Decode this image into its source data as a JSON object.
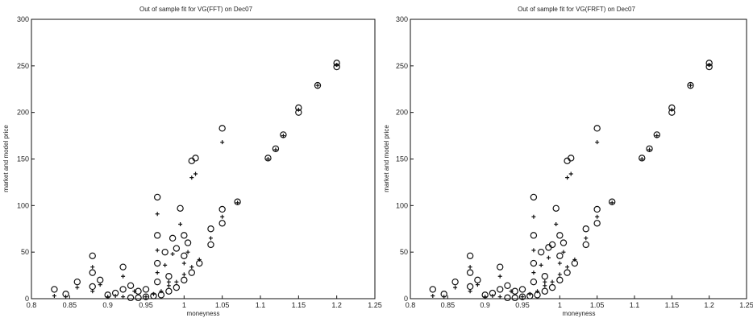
{
  "chart_data": [
    {
      "type": "scatter",
      "title": "Out of sample fit for VG(FFT) on Dec07",
      "xlabel": "moneyness",
      "ylabel": "market and model price",
      "xlim": [
        0.8,
        1.25
      ],
      "ylim": [
        0,
        300
      ],
      "xticks": [
        "0.8",
        "0.85",
        "0.9",
        "0.95",
        "1",
        "1.05",
        "1.1",
        "1.15",
        "1.2",
        "1.25"
      ],
      "yticks": [
        "0",
        "50",
        "100",
        "150",
        "200",
        "250",
        "300"
      ],
      "grid": false,
      "series": [
        {
          "marker": "circle",
          "points": [
            [
              0.83,
              10
            ],
            [
              0.845,
              5
            ],
            [
              0.86,
              18
            ],
            [
              0.88,
              46
            ],
            [
              0.88,
              13
            ],
            [
              0.88,
              28
            ],
            [
              0.89,
              20
            ],
            [
              0.9,
              4
            ],
            [
              0.91,
              6
            ],
            [
              0.92,
              34
            ],
            [
              0.92,
              10
            ],
            [
              0.93,
              14
            ],
            [
              0.94,
              8
            ],
            [
              0.95,
              10
            ],
            [
              0.965,
              109
            ],
            [
              0.965,
              68
            ],
            [
              0.965,
              38
            ],
            [
              0.965,
              18
            ],
            [
              0.975,
              50
            ],
            [
              0.98,
              24
            ],
            [
              0.985,
              65
            ],
            [
              0.99,
              54
            ],
            [
              0.995,
              97
            ],
            [
              1.0,
              46
            ],
            [
              1.0,
              68
            ],
            [
              1.005,
              60
            ],
            [
              1.01,
              148
            ],
            [
              1.015,
              151
            ],
            [
              1.05,
              183
            ],
            [
              1.05,
              96
            ],
            [
              1.05,
              81
            ],
            [
              1.035,
              58
            ],
            [
              1.035,
              75
            ],
            [
              1.07,
              104
            ],
            [
              1.11,
              151
            ],
            [
              1.12,
              161
            ],
            [
              1.13,
              176
            ],
            [
              1.15,
              205
            ],
            [
              1.15,
              200
            ],
            [
              1.175,
              229
            ],
            [
              1.2,
              253
            ],
            [
              1.2,
              249
            ],
            [
              0.93,
              1
            ],
            [
              0.94,
              1
            ],
            [
              0.95,
              2
            ],
            [
              0.96,
              3
            ],
            [
              0.97,
              4
            ],
            [
              0.98,
              8
            ],
            [
              0.99,
              12
            ],
            [
              1.0,
              20
            ],
            [
              1.01,
              28
            ],
            [
              1.02,
              38
            ]
          ]
        },
        {
          "marker": "plus",
          "points": [
            [
              0.83,
              3
            ],
            [
              0.845,
              2
            ],
            [
              0.86,
              12
            ],
            [
              0.88,
              34
            ],
            [
              0.88,
              8
            ],
            [
              0.89,
              15
            ],
            [
              0.92,
              24
            ],
            [
              0.935,
              8
            ],
            [
              0.965,
              91
            ],
            [
              0.965,
              52
            ],
            [
              0.965,
              28
            ],
            [
              0.975,
              36
            ],
            [
              0.98,
              18
            ],
            [
              0.985,
              48
            ],
            [
              0.995,
              80
            ],
            [
              1.0,
              38
            ],
            [
              1.005,
              50
            ],
            [
              1.01,
              130
            ],
            [
              1.015,
              134
            ],
            [
              1.05,
              168
            ],
            [
              1.05,
              88
            ],
            [
              1.035,
              65
            ],
            [
              1.07,
              103
            ],
            [
              1.11,
              150
            ],
            [
              1.12,
              160
            ],
            [
              1.13,
              175
            ],
            [
              1.15,
              203
            ],
            [
              1.175,
              229
            ],
            [
              1.2,
              251
            ],
            [
              0.9,
              2
            ],
            [
              0.91,
              3
            ],
            [
              0.92,
              2
            ],
            [
              0.95,
              2
            ],
            [
              0.96,
              5
            ],
            [
              0.97,
              8
            ],
            [
              0.98,
              14
            ],
            [
              0.99,
              18
            ],
            [
              1.0,
              26
            ],
            [
              1.01,
              34
            ],
            [
              1.02,
              42
            ]
          ]
        }
      ]
    },
    {
      "type": "scatter",
      "title": "Out of sample fit for VG(FRFT) on Dec07",
      "xlabel": "moneyness",
      "ylabel": "market and model price",
      "xlim": [
        0.8,
        1.25
      ],
      "ylim": [
        0,
        300
      ],
      "xticks": [
        "0.8",
        "0.85",
        "0.9",
        "0.95",
        "1",
        "1.05",
        "1.1",
        "1.15",
        "1.2",
        "1.25"
      ],
      "yticks": [
        "0",
        "50",
        "100",
        "150",
        "200",
        "250",
        "300"
      ],
      "grid": false,
      "series": [
        {
          "marker": "circle",
          "points": [
            [
              0.83,
              10
            ],
            [
              0.845,
              5
            ],
            [
              0.86,
              18
            ],
            [
              0.88,
              46
            ],
            [
              0.88,
              13
            ],
            [
              0.88,
              28
            ],
            [
              0.89,
              20
            ],
            [
              0.9,
              4
            ],
            [
              0.91,
              6
            ],
            [
              0.92,
              34
            ],
            [
              0.92,
              10
            ],
            [
              0.93,
              14
            ],
            [
              0.94,
              8
            ],
            [
              0.95,
              10
            ],
            [
              0.965,
              109
            ],
            [
              0.965,
              68
            ],
            [
              0.965,
              38
            ],
            [
              0.965,
              18
            ],
            [
              0.975,
              50
            ],
            [
              0.98,
              24
            ],
            [
              0.985,
              55
            ],
            [
              0.99,
              58
            ],
            [
              0.995,
              97
            ],
            [
              1.0,
              46
            ],
            [
              1.0,
              68
            ],
            [
              1.005,
              60
            ],
            [
              1.01,
              148
            ],
            [
              1.015,
              151
            ],
            [
              1.05,
              183
            ],
            [
              1.05,
              96
            ],
            [
              1.05,
              81
            ],
            [
              1.035,
              58
            ],
            [
              1.035,
              75
            ],
            [
              1.07,
              104
            ],
            [
              1.11,
              151
            ],
            [
              1.12,
              161
            ],
            [
              1.13,
              176
            ],
            [
              1.15,
              205
            ],
            [
              1.15,
              200
            ],
            [
              1.175,
              229
            ],
            [
              1.2,
              253
            ],
            [
              1.2,
              249
            ],
            [
              0.93,
              1
            ],
            [
              0.94,
              1
            ],
            [
              0.95,
              2
            ],
            [
              0.96,
              3
            ],
            [
              0.97,
              4
            ],
            [
              0.98,
              8
            ],
            [
              0.99,
              12
            ],
            [
              1.0,
              20
            ],
            [
              1.01,
              28
            ],
            [
              1.02,
              38
            ]
          ]
        },
        {
          "marker": "plus",
          "points": [
            [
              0.83,
              3
            ],
            [
              0.845,
              2
            ],
            [
              0.86,
              12
            ],
            [
              0.88,
              34
            ],
            [
              0.88,
              8
            ],
            [
              0.89,
              15
            ],
            [
              0.92,
              24
            ],
            [
              0.935,
              8
            ],
            [
              0.965,
              88
            ],
            [
              0.965,
              52
            ],
            [
              0.965,
              28
            ],
            [
              0.975,
              36
            ],
            [
              0.98,
              18
            ],
            [
              0.985,
              44
            ],
            [
              0.995,
              80
            ],
            [
              1.0,
              38
            ],
            [
              1.005,
              50
            ],
            [
              1.01,
              130
            ],
            [
              1.015,
              134
            ],
            [
              1.05,
              168
            ],
            [
              1.05,
              88
            ],
            [
              1.035,
              65
            ],
            [
              1.07,
              103
            ],
            [
              1.11,
              150
            ],
            [
              1.12,
              160
            ],
            [
              1.13,
              175
            ],
            [
              1.15,
              203
            ],
            [
              1.175,
              229
            ],
            [
              1.2,
              251
            ],
            [
              0.9,
              2
            ],
            [
              0.91,
              3
            ],
            [
              0.92,
              2
            ],
            [
              0.95,
              2
            ],
            [
              0.96,
              5
            ],
            [
              0.97,
              8
            ],
            [
              0.98,
              14
            ],
            [
              0.99,
              18
            ],
            [
              1.0,
              26
            ],
            [
              1.01,
              34
            ],
            [
              1.02,
              42
            ]
          ]
        }
      ]
    }
  ]
}
